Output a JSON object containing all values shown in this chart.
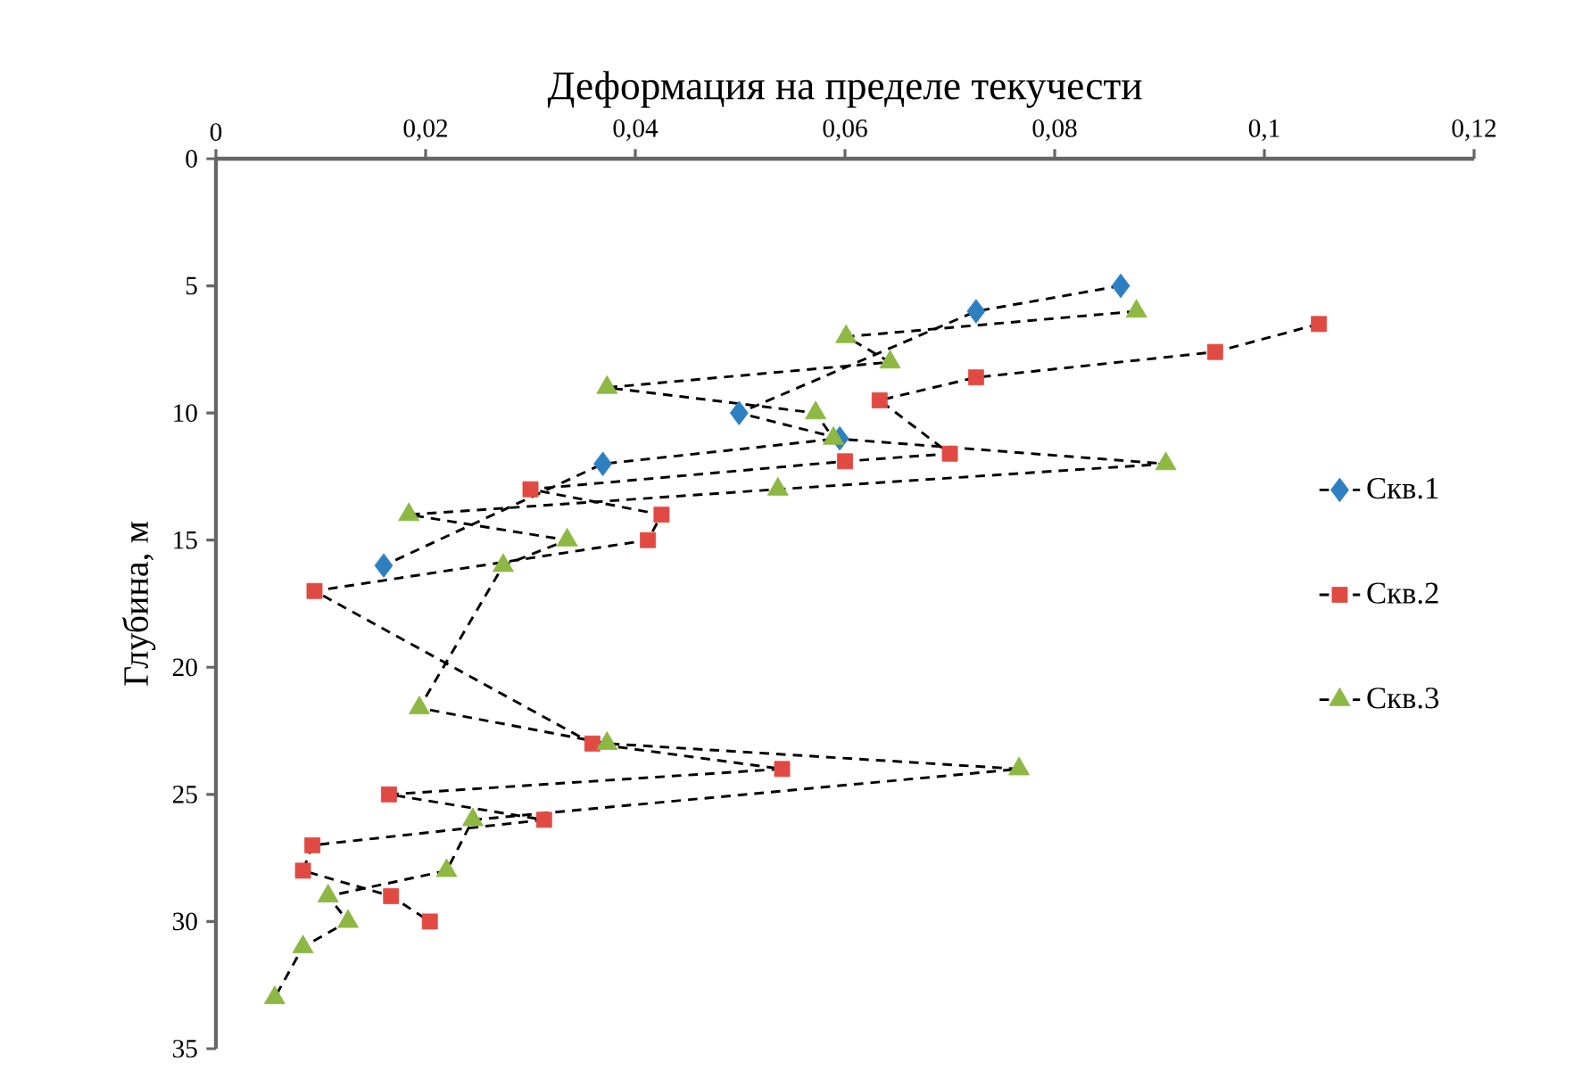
{
  "chart_data": {
    "type": "line",
    "xlabel": "Деформация на пределе текучести",
    "ylabel": "Глубина, м",
    "xlim": [
      0,
      0.12
    ],
    "xticks": [
      {
        "value": 0,
        "label": "0"
      },
      {
        "value": 0.02,
        "label": "0,02"
      },
      {
        "value": 0.04,
        "label": "0,04"
      },
      {
        "value": 0.06,
        "label": "0,06"
      },
      {
        "value": 0.08,
        "label": "0,08"
      },
      {
        "value": 0.1,
        "label": "0,1"
      },
      {
        "value": 0.12,
        "label": "0,12"
      }
    ],
    "ylim": [
      35,
      0
    ],
    "yticks": [
      0,
      5,
      10,
      15,
      20,
      25,
      30,
      35
    ],
    "legend": "right",
    "line_style": "dashed",
    "series": [
      {
        "name": "Скв.1",
        "color": "#2e7fc1",
        "marker": "diamond",
        "x": [
          0.0863,
          0.0725,
          0.0499,
          0.0595,
          0.0369,
          0.016
        ],
        "values": [
          5,
          6,
          10,
          11,
          12,
          16
        ]
      },
      {
        "name": "Скв.2",
        "color": "#e04a43",
        "marker": "square",
        "x": [
          0.1052,
          0.0953,
          0.0725,
          0.0633,
          0.07,
          0.06,
          0.03,
          0.0425,
          0.0412,
          0.0094,
          0.0359,
          0.054,
          0.0165,
          0.0313,
          0.0092,
          0.0083,
          0.0167,
          0.0204
        ],
        "values": [
          6.5,
          7.6,
          8.6,
          9.5,
          11.6,
          11.9,
          13,
          14,
          15,
          17,
          23,
          24,
          25,
          26,
          27,
          28,
          29,
          30
        ]
      },
      {
        "name": "Скв.3",
        "color": "#8db843",
        "marker": "triangle",
        "x": [
          0.0878,
          0.0601,
          0.0643,
          0.0373,
          0.0572,
          0.0589,
          0.0906,
          0.0536,
          0.0184,
          0.0335,
          0.0274,
          0.0194,
          0.0373,
          0.0766,
          0.0245,
          0.022,
          0.0107,
          0.0126,
          0.0083,
          0.0056
        ],
        "values": [
          6,
          7,
          8,
          9,
          10,
          11,
          12,
          13,
          14,
          15,
          16,
          21.6,
          23,
          24,
          26,
          28,
          29,
          30,
          31,
          33
        ]
      }
    ]
  }
}
